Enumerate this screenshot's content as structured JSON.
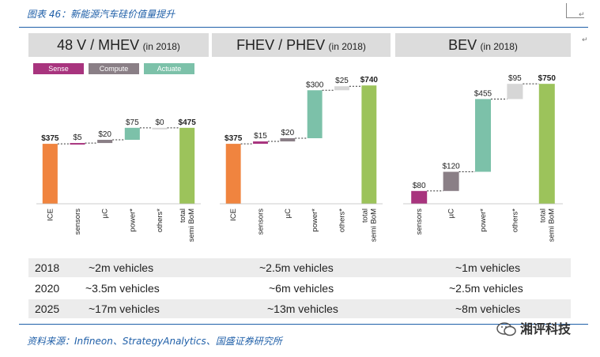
{
  "figure": {
    "title": "图表 46：新能源汽车硅价值量提升",
    "source": "资料来源：Infineon、StrategyAnalytics、国盛证券研究所",
    "watermark": "湘评科技",
    "edit_mark": "↵"
  },
  "legend": [
    {
      "label": "Sense",
      "color": "#a8347e"
    },
    {
      "label": "Compute",
      "color": "#8a7f86"
    },
    {
      "label": "Actuate",
      "color": "#7cc1a9"
    }
  ],
  "colors": {
    "ice": "#f0843f",
    "total": "#9cc35b",
    "connector": "#333333"
  },
  "chart_data": [
    {
      "type": "bar",
      "subtype": "waterfall",
      "title": "48 V / MHEV",
      "subtitle": "(in 2018)",
      "categories": [
        "ICE",
        "sensors",
        "µC",
        "power*",
        "others*",
        "total semi BoM"
      ],
      "category_lines": [
        [
          "ICE"
        ],
        [
          "sensors"
        ],
        [
          "µC"
        ],
        [
          "power*"
        ],
        [
          "others*"
        ],
        [
          "total",
          "semi BoM"
        ]
      ],
      "values": [
        375,
        5,
        20,
        75,
        0,
        475
      ],
      "labels": [
        "$375",
        "$5",
        "$20",
        "$75",
        "$0",
        "$475"
      ],
      "kinds": [
        "ice",
        "sense",
        "compute",
        "actuate",
        "others",
        "total"
      ],
      "bold": [
        true,
        false,
        false,
        false,
        false,
        true
      ],
      "ylim": [
        0,
        820
      ]
    },
    {
      "type": "bar",
      "subtype": "waterfall",
      "title": "FHEV / PHEV",
      "subtitle": "(in 2018)",
      "categories": [
        "ICE",
        "sensors",
        "µC",
        "power*",
        "others*",
        "total semi BoM"
      ],
      "category_lines": [
        [
          "ICE"
        ],
        [
          "sensors"
        ],
        [
          "µC"
        ],
        [
          "power*"
        ],
        [
          "others*"
        ],
        [
          "total",
          "semi BoM"
        ]
      ],
      "values": [
        375,
        15,
        20,
        300,
        25,
        740
      ],
      "labels": [
        "$375",
        "$15",
        "$20",
        "$300",
        "$25",
        "$740"
      ],
      "kinds": [
        "ice",
        "sense",
        "compute",
        "actuate",
        "others",
        "total"
      ],
      "bold": [
        true,
        false,
        false,
        false,
        false,
        true
      ],
      "ylim": [
        0,
        820
      ]
    },
    {
      "type": "bar",
      "subtype": "waterfall",
      "title": "BEV",
      "subtitle": "(in 2018)",
      "categories": [
        "sensors",
        "µC",
        "power*",
        "others*",
        "total semi BoM"
      ],
      "category_lines": [
        [
          "sensors"
        ],
        [
          "µC"
        ],
        [
          "power*"
        ],
        [
          "others*"
        ],
        [
          "total",
          "semi BoM"
        ]
      ],
      "values": [
        80,
        120,
        455,
        95,
        750
      ],
      "labels": [
        "$80",
        "$120",
        "$455",
        "$95",
        "$750"
      ],
      "kinds": [
        "sense",
        "compute",
        "actuate",
        "others",
        "total"
      ],
      "bold": [
        false,
        false,
        false,
        false,
        true
      ],
      "ylim": [
        0,
        820
      ]
    }
  ],
  "vehicle_table": [
    {
      "year": "2018",
      "cells": [
        "~2m vehicles",
        "~2.5m vehicles",
        "~1m vehicles"
      ]
    },
    {
      "year": "2020",
      "cells": [
        "~3.5m vehicles",
        "~6m vehicles",
        "~2.5m vehicles"
      ]
    },
    {
      "year": "2025",
      "cells": [
        "~17m vehicles",
        "~13m vehicles",
        "~8m vehicles"
      ]
    }
  ]
}
